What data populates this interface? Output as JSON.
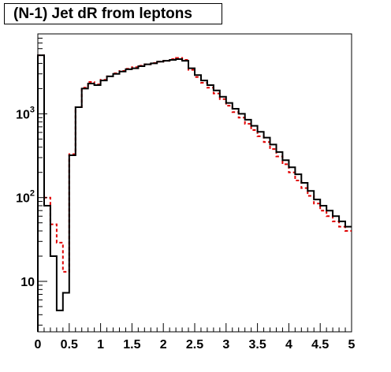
{
  "chart_data": {
    "type": "histogram",
    "title": "(N-1) Jet dR from leptons",
    "xlabel": "",
    "ylabel": "",
    "xlim": [
      0,
      5
    ],
    "ylim": [
      2.5,
      9000
    ],
    "yscale": "log",
    "grid": false,
    "bin_width": 0.1,
    "x_ticks": [
      "0",
      "0.5",
      "1",
      "1.5",
      "2",
      "2.5",
      "3",
      "3.5",
      "4",
      "4.5",
      "5"
    ],
    "y_ticks": [
      {
        "value": 10,
        "base": "10",
        "exp": ""
      },
      {
        "value": 100,
        "base": "10",
        "exp": "2"
      },
      {
        "value": 1000,
        "base": "10",
        "exp": "3"
      }
    ],
    "series": [
      {
        "color": "#000000",
        "style": "solid",
        "values": [
          5000,
          80,
          20,
          4.5,
          7.3,
          320,
          1200,
          2000,
          2300,
          2200,
          2500,
          2800,
          3000,
          3200,
          3400,
          3500,
          3700,
          3900,
          4000,
          4200,
          4300,
          4400,
          4500,
          4300,
          3500,
          2900,
          2500,
          2200,
          1900,
          1600,
          1350,
          1150,
          1000,
          850,
          720,
          610,
          520,
          430,
          350,
          280,
          230,
          190,
          150,
          120,
          95,
          80,
          70,
          60,
          52,
          45
        ]
      },
      {
        "color": "#e00000",
        "style": "dashed",
        "values": [
          5000,
          100,
          48,
          29,
          13,
          330,
          1200,
          2050,
          2400,
          2250,
          2550,
          2800,
          3050,
          3250,
          3450,
          3600,
          3750,
          3900,
          4050,
          4200,
          4300,
          4500,
          4650,
          4400,
          3350,
          2750,
          2350,
          2050,
          1750,
          1500,
          1250,
          1050,
          900,
          760,
          640,
          540,
          460,
          380,
          310,
          250,
          200,
          160,
          130,
          105,
          85,
          70,
          60,
          52,
          45,
          40
        ]
      }
    ]
  }
}
